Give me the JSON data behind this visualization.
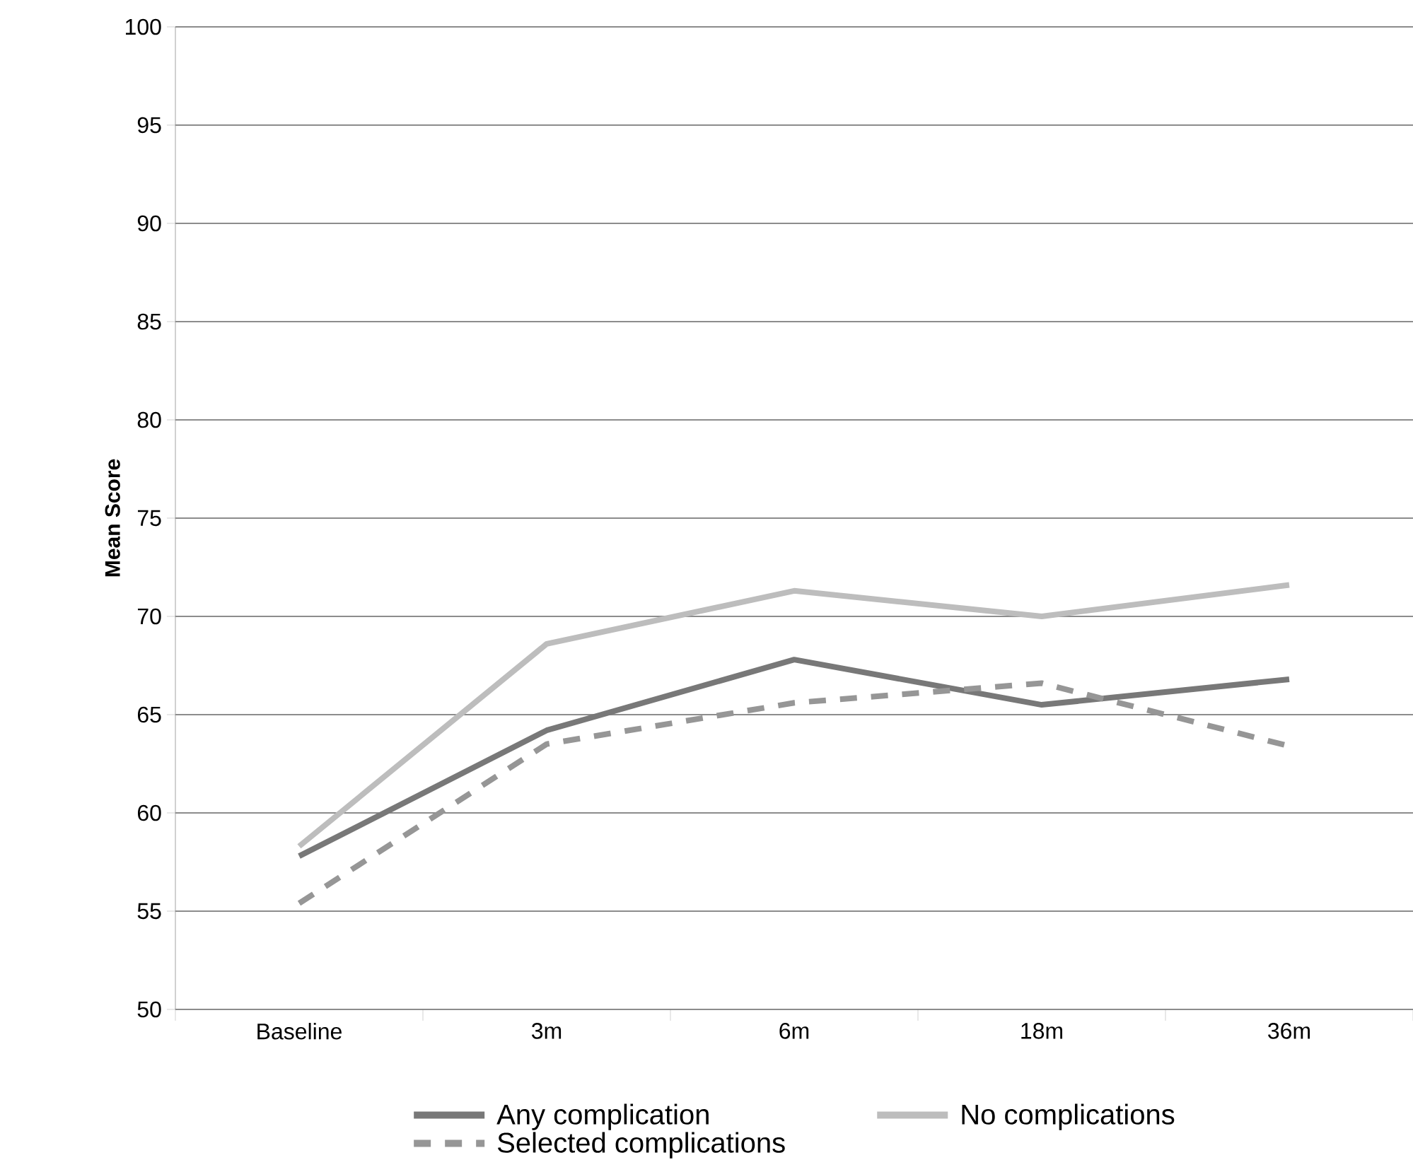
{
  "chart_data": {
    "type": "line",
    "ylabel": "Mean Score",
    "categories": [
      "Baseline",
      "3m",
      "6m",
      "18m",
      "36m"
    ],
    "series": [
      {
        "name": "Any complication",
        "color": "#787878",
        "values": [
          57.8,
          64.2,
          67.8,
          65.5,
          66.8
        ]
      },
      {
        "name": "No complications",
        "color": "#bdbdbd",
        "values": [
          58.3,
          68.6,
          71.3,
          70.0,
          71.6
        ]
      },
      {
        "name": "Selected complications",
        "color": "#969696",
        "values": [
          55.4,
          63.5,
          65.6,
          66.6,
          63.4
        ],
        "line_style": "dashed"
      }
    ],
    "ylim": [
      50,
      100
    ],
    "yticks": [
      50,
      55,
      60,
      65,
      70,
      75,
      80,
      85,
      90,
      95,
      100
    ],
    "grid": "y",
    "legend": "bottom"
  }
}
